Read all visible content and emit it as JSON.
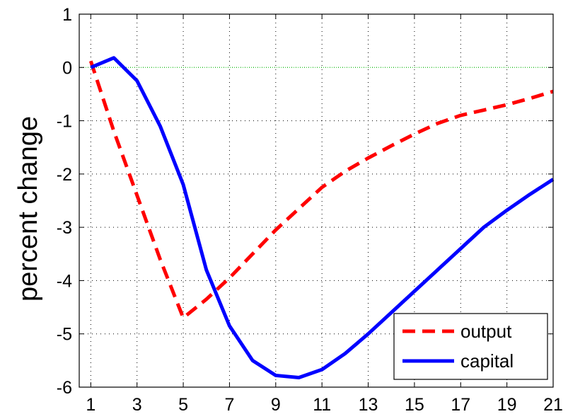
{
  "chart_data": {
    "type": "line",
    "title": "",
    "xlabel": "",
    "ylabel": "percent change",
    "xlim": [
      0.5,
      21
    ],
    "ylim": [
      -6,
      1
    ],
    "x_ticks": [
      "1",
      "3",
      "5",
      "7",
      "9",
      "11",
      "13",
      "15",
      "17",
      "19",
      "21"
    ],
    "y_ticks": [
      "1",
      "0",
      "-1",
      "-2",
      "-3",
      "-4",
      "-5",
      "-6"
    ],
    "grid": true,
    "legend_position": "bottom-right",
    "x": [
      1,
      2,
      3,
      4,
      5,
      6,
      7,
      8,
      9,
      10,
      11,
      12,
      13,
      14,
      15,
      16,
      17,
      18,
      19,
      20,
      21
    ],
    "series": [
      {
        "name": "output",
        "color": "#ff0000",
        "style": "dashed",
        "values": [
          0.12,
          -1.2,
          -2.4,
          -3.6,
          -4.7,
          -4.35,
          -3.95,
          -3.5,
          -3.05,
          -2.65,
          -2.25,
          -1.95,
          -1.7,
          -1.47,
          -1.25,
          -1.05,
          -0.9,
          -0.8,
          -0.7,
          -0.58,
          -0.45
        ]
      },
      {
        "name": "capital",
        "color": "#0000ff",
        "style": "solid",
        "values": [
          0.0,
          0.18,
          -0.25,
          -1.1,
          -2.2,
          -3.8,
          -4.85,
          -5.5,
          -5.78,
          -5.82,
          -5.67,
          -5.37,
          -5.0,
          -4.6,
          -4.2,
          -3.8,
          -3.4,
          -3.0,
          -2.68,
          -2.38,
          -2.1
        ]
      }
    ],
    "zero_line_color": "#00cc00"
  }
}
